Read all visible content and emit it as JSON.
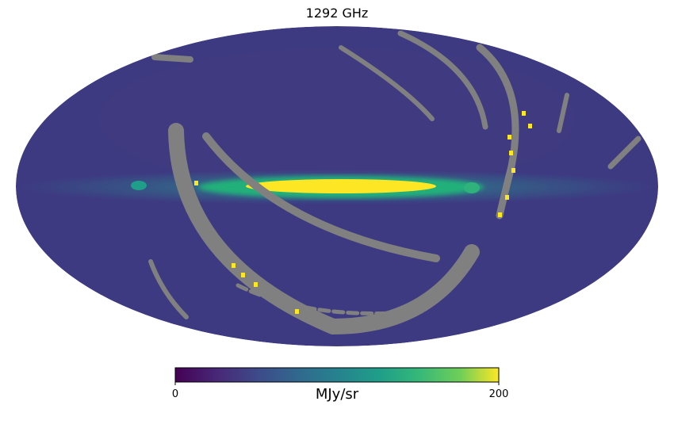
{
  "chart_data": {
    "type": "heatmap",
    "projection": "mollweide",
    "title": "1292 GHz",
    "colorbar": {
      "label": "MJy/sr",
      "min": 0,
      "max": 200,
      "ticks": [
        "0",
        "200"
      ],
      "colormap": "viridis"
    },
    "masked_color": "#808080",
    "background_level": 25,
    "galactic_plane_level": 200
  }
}
